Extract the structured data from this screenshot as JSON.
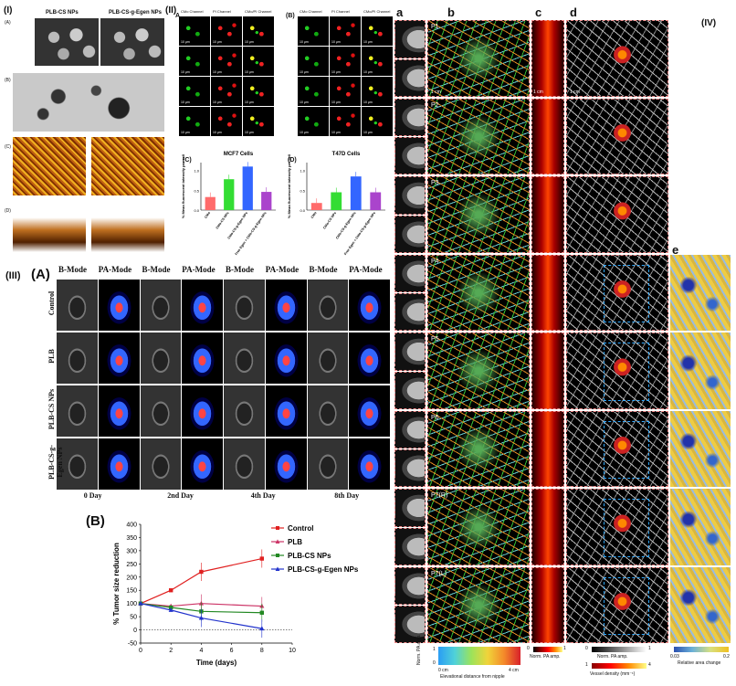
{
  "panel_I": {
    "label": "(I)",
    "sub_labels": [
      "(A)",
      "(B)",
      "(C)",
      "(D)"
    ],
    "col_titles": [
      "PLB-CS NPs",
      "PLB-CS-g-Egen NPs"
    ]
  },
  "panel_II": {
    "label": "(II)",
    "A": {
      "label": "A",
      "columns": [
        "CMo Channel",
        "PI Channel",
        "CMo/PI Channel"
      ],
      "rows": [
        "Free CMo",
        "CMo-CS NPs",
        "CMo-CS-g-Egen NPs",
        "Free Egen + CMo-CS-g-Egen NPs"
      ],
      "scale": "10 μm"
    },
    "B": {
      "label": "(B)",
      "columns": [
        "CMo Channel",
        "PI Channel",
        "CMo/PI Channel"
      ],
      "rows": [
        "Free CMo",
        "CMo-CS NPs",
        "CMo-CS-g-Egen NPs",
        "Free Egen + CMo-CS-g-Egen NPs"
      ],
      "scale": "10 μm"
    }
  },
  "panel_III": {
    "label": "(III)",
    "A_label": "(A)",
    "B_label": "(B)",
    "day_headers": [
      {
        "left": "B-Mode",
        "right": "PA-Mode",
        "day": "0 Day"
      },
      {
        "left": "B-Mode",
        "right": "PA-Mode",
        "day": "2nd Day"
      },
      {
        "left": "B-Mode",
        "right": "PA-Mode",
        "day": "4th Day"
      },
      {
        "left": "B-Mode",
        "right": "PA-Mode",
        "day": "8th Day"
      }
    ],
    "row_labels": [
      "Control",
      "PLB",
      "PLB-CS NPs",
      "PLB-CS-g-Egen NPs"
    ]
  },
  "panel_IV": {
    "label": "(IV)",
    "col_labels": [
      "a",
      "b",
      "c",
      "d",
      "e"
    ],
    "patients": [
      "P1",
      "P2",
      "P3",
      "P4",
      "P5",
      "P6",
      "P7(R)",
      "P7(L)"
    ],
    "scale_labels": [
      "1 cm",
      "1 cm",
      "1 cm"
    ],
    "colorbars": [
      {
        "title": "Elevational distance from nipple",
        "min": "0 cm",
        "max": "4 cm",
        "side": "Norm. PA amp.",
        "lo": "0",
        "hi": "1"
      },
      {
        "title": "Norm. PA amp.",
        "lo": "0",
        "hi": "1"
      },
      {
        "title": "Norm. PA amp.",
        "lo": "0",
        "hi": "1",
        "title2": "Vessel density (mm⁻¹)",
        "lo2": "1",
        "hi2": "4"
      },
      {
        "title": "Relative area change",
        "lo": "0.03",
        "hi": "0.2"
      }
    ]
  },
  "chart_data": [
    {
      "type": "bar",
      "title": "MCF7 Cells",
      "panel": "(C)",
      "ylabel": "% Mean fluorescent intensity per cell",
      "ylim": [
        0,
        1.2
      ],
      "categories": [
        "CMo",
        "CMo-CS NPs",
        "CMo-CS-g-Egen NPs",
        "Free Egen + CMo-CS-g-Egen NPs"
      ],
      "values": [
        0.33,
        0.78,
        1.1,
        0.46
      ],
      "colors": [
        "#ff6b6b",
        "#33dd33",
        "#3366ff",
        "#aa44cc"
      ]
    },
    {
      "type": "bar",
      "title": "T47D Cells",
      "panel": "(D)",
      "ylabel": "% Mean fluorescent intensity per cell",
      "ylim": [
        0,
        1.2
      ],
      "categories": [
        "CMo",
        "CMo-CS NPs",
        "CMo-CS-g-Egen NPs",
        "Free Egen + CMo-CS-g-Egen NPs"
      ],
      "values": [
        0.18,
        0.45,
        0.85,
        0.45
      ],
      "colors": [
        "#ff6b6b",
        "#33dd33",
        "#3366ff",
        "#aa44cc"
      ]
    },
    {
      "type": "line",
      "panel": "(B)",
      "xlabel": "Time (days)",
      "ylabel": "% Tumor size reduction",
      "xlim": [
        0,
        10
      ],
      "ylim": [
        -50,
        400
      ],
      "xticks": [
        0,
        2,
        4,
        6,
        8,
        10
      ],
      "yticks": [
        -50,
        0,
        50,
        100,
        150,
        200,
        250,
        300,
        350,
        400
      ],
      "x": [
        0,
        2,
        4,
        8
      ],
      "series": [
        {
          "name": "Control",
          "color": "#e02020",
          "marker": "square",
          "values": [
            100,
            150,
            220,
            270
          ]
        },
        {
          "name": "PLB",
          "color": "#cc3366",
          "marker": "triangle",
          "values": [
            100,
            90,
            100,
            90
          ]
        },
        {
          "name": "PLB-CS NPs",
          "color": "#228822",
          "marker": "square",
          "values": [
            100,
            85,
            70,
            65
          ]
        },
        {
          "name": "PLB-CS-g-Egen NPs",
          "color": "#2233cc",
          "marker": "triangle",
          "values": [
            100,
            75,
            45,
            5
          ]
        }
      ]
    }
  ]
}
